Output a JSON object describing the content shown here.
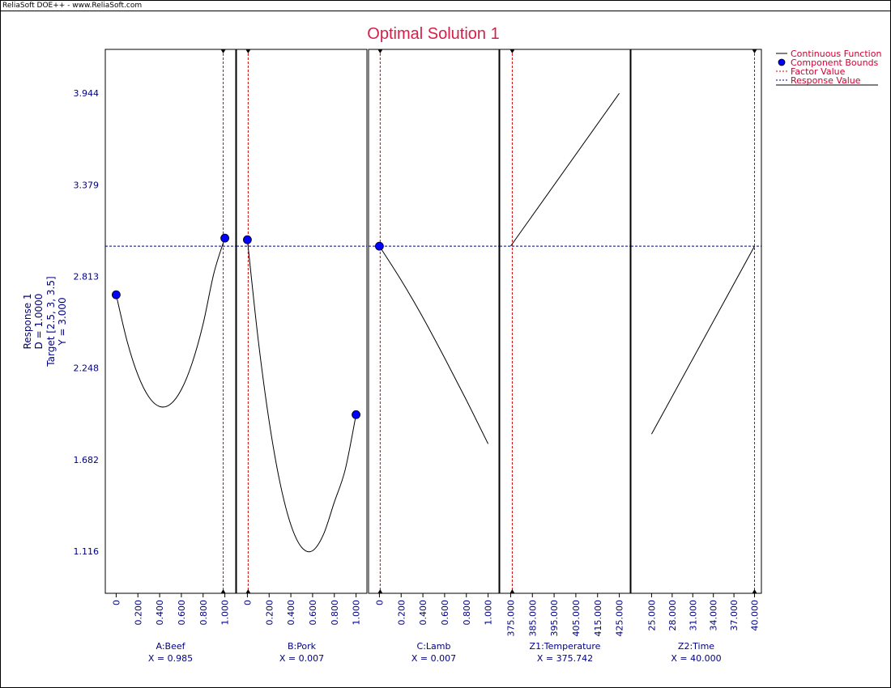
{
  "watermark": "ReliaSoft DOE++ - www.ReliaSoft.com",
  "colors": {
    "title": "#d81e48",
    "axis_text": "#000080",
    "factor_line": "#d00000",
    "response_line": "#000080",
    "curve": "#000000",
    "marker": "#0000ff"
  },
  "chart_data": {
    "type": "line",
    "title": "Optimal Solution 1",
    "ylabel_lines": [
      "Response 1",
      "D = 1.0000",
      "Target [2.5, 3, 3.5]",
      "Y = 3.000"
    ],
    "y_ticks": [
      "3.944",
      "3.379",
      "2.813",
      "2.248",
      "1.682",
      "1.116"
    ],
    "ylim": [
      0.857,
      4.215
    ],
    "response_value": 3.0,
    "legend": [
      "Continuous Function",
      "Component Bounds",
      "Factor Value",
      "Response Value"
    ],
    "panels": [
      {
        "name": "A:Beef",
        "value_label": "X = 0.985",
        "x_ticks": [
          "0",
          "0.200",
          "0.400",
          "0.600",
          "0.800",
          "1.000"
        ],
        "xlim": [
          -0.1,
          1.1
        ],
        "factor_value": 0.985,
        "curve_x": [
          0,
          0.1,
          0.2,
          0.3,
          0.4,
          0.5,
          0.6,
          0.7,
          0.8,
          0.9,
          1.0
        ],
        "curve_y": [
          2.7,
          2.415,
          2.205,
          2.07,
          2.01,
          2.025,
          2.115,
          2.28,
          2.52,
          2.835,
          3.05
        ],
        "bounds": [
          [
            0,
            2.7
          ],
          [
            1.0,
            3.05
          ]
        ]
      },
      {
        "name": "B:Pork",
        "value_label": "X = 0.007",
        "x_ticks": [
          "0",
          "0.200",
          "0.400",
          "0.600",
          "0.800",
          "1.000"
        ],
        "xlim": [
          -0.1,
          1.1
        ],
        "factor_value": 0.007,
        "curve_x": [
          0,
          0.1,
          0.2,
          0.3,
          0.4,
          0.5,
          0.6,
          0.7,
          0.8,
          0.9,
          1.0
        ],
        "curve_y": [
          3.04,
          2.42,
          1.92,
          1.54,
          1.28,
          1.14,
          1.12,
          1.22,
          1.42,
          1.62,
          1.96
        ],
        "bounds": [
          [
            0,
            3.04
          ],
          [
            1.0,
            1.96
          ]
        ]
      },
      {
        "name": "C:Lamb",
        "value_label": "X = 0.007",
        "x_ticks": [
          "0",
          "0.200",
          "0.400",
          "0.600",
          "0.800",
          "1.000"
        ],
        "xlim": [
          -0.1,
          1.1
        ],
        "factor_value": 0.007,
        "curve_x": [
          0,
          0.2,
          0.4,
          0.6,
          0.8,
          1.0
        ],
        "curve_y": [
          3.0,
          2.79,
          2.56,
          2.31,
          2.05,
          1.78
        ],
        "bounds": [
          [
            0,
            3.0
          ]
        ]
      },
      {
        "name": "Z1:Temperature",
        "value_label": "X = 375.742",
        "x_ticks": [
          "375.000",
          "385.000",
          "395.000",
          "405.000",
          "415.000",
          "425.000"
        ],
        "xlim": [
          370,
          430
        ],
        "factor_value": 375.742,
        "curve_x": [
          375,
          425
        ],
        "curve_y": [
          3.0,
          3.944
        ],
        "bounds": []
      },
      {
        "name": "Z2:Time",
        "value_label": "X = 40.000",
        "x_ticks": [
          "25.000",
          "28.000",
          "31.000",
          "34.000",
          "37.000",
          "40.000"
        ],
        "xlim": [
          22,
          41
        ],
        "factor_value": 40.0,
        "curve_x": [
          25,
          40
        ],
        "curve_y": [
          1.84,
          3.0
        ],
        "bounds": []
      }
    ]
  }
}
